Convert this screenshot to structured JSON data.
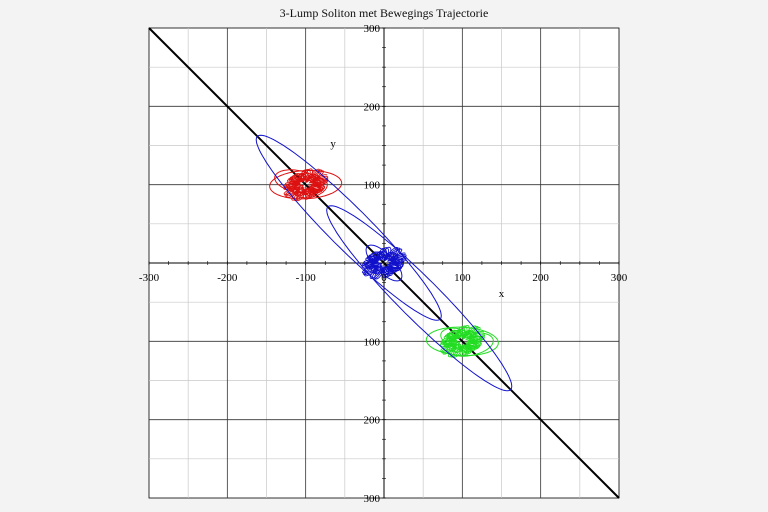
{
  "chart_data": {
    "type": "line",
    "title": "3-Lump Soliton met Bewegings Trajectorie",
    "xlabel": "x",
    "ylabel": "y",
    "xlim": [
      -300,
      300
    ],
    "ylim": [
      -300,
      300
    ],
    "x_ticks": [
      "-300",
      "-200",
      "-100",
      "0",
      "100",
      "200",
      "300"
    ],
    "y_ticks": [
      "300",
      "200",
      "100",
      "100",
      "200",
      "300"
    ],
    "grid": true,
    "reference_line": {
      "from": [
        -300,
        300
      ],
      "to": [
        300,
        -300
      ],
      "color": "#000000"
    },
    "series": [
      {
        "color": "#dd1111",
        "center": [
          -100,
          100
        ]
      },
      {
        "color": "#1111cc",
        "center": [
          0,
          0
        ]
      },
      {
        "color": "#22dd22",
        "center": [
          100,
          -100
        ]
      }
    ]
  }
}
